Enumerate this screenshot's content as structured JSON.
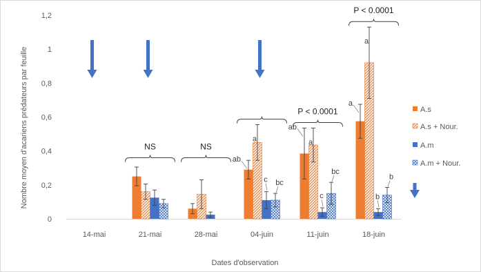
{
  "chart_data": {
    "type": "bar",
    "xlabel": "Dates d'observation",
    "ylabel": "Nombre moyen d'acariens prédateurs par feuille",
    "ylim": [
      0,
      1.2
    ],
    "yticks": [
      "0",
      "0,2",
      "0,4",
      "0,6",
      "0,8",
      "1",
      "1,2"
    ],
    "ytick_values": [
      0,
      0.2,
      0.4,
      0.6,
      0.8,
      1.0,
      1.2
    ],
    "grid": false,
    "legend_position": "right",
    "categories": [
      "14-mai",
      "21-mai",
      "28-mai",
      "04-juin",
      "11-juin",
      "18-juin"
    ],
    "series": [
      {
        "name": "A.s",
        "color": "#ED7D31",
        "pattern": "solid",
        "values": [
          null,
          0.25,
          0.06,
          0.29,
          0.385,
          0.575
        ],
        "errors": [
          null,
          0.055,
          0.03,
          0.055,
          0.15,
          0.1
        ],
        "letters": [
          "",
          "",
          "",
          "ab",
          "ab",
          "a"
        ]
      },
      {
        "name": "A.s + Nour.",
        "color": "#ED7D31",
        "pattern": "hatch",
        "values": [
          null,
          0.16,
          0.145,
          0.45,
          0.435,
          0.92
        ],
        "errors": [
          null,
          0.045,
          0.085,
          0.105,
          0.1,
          0.21
        ],
        "letters": [
          "",
          "",
          "",
          "a",
          "a",
          "a"
        ]
      },
      {
        "name": "A.m",
        "color": "#4472C4",
        "pattern": "solid",
        "values": [
          null,
          0.125,
          0.025,
          0.11,
          0.04,
          0.04
        ],
        "errors": [
          null,
          0.045,
          0.015,
          0.05,
          0.025,
          0.02
        ],
        "letters": [
          "",
          "",
          "",
          "c",
          "c",
          "b"
        ]
      },
      {
        "name": "A.m + Nour.",
        "color": "#4472C4",
        "pattern": "dots",
        "values": [
          null,
          0.09,
          null,
          0.11,
          0.15,
          0.14
        ],
        "errors": [
          null,
          0.025,
          null,
          0.04,
          0.065,
          0.045
        ],
        "letters": [
          "",
          "",
          "",
          "bc",
          "bc",
          "b"
        ]
      }
    ],
    "significance": [
      {
        "category": "21-mai",
        "label": "NS"
      },
      {
        "category": "28-mai",
        "label": "NS"
      },
      {
        "category": "04-juin",
        "label": ""
      },
      {
        "category": "11-juin",
        "label": "P < 0.0001"
      },
      {
        "category": "18-juin",
        "label": "P < 0.0001"
      }
    ],
    "arrows": {
      "color": "#4472C4",
      "direction": "down",
      "on_categories": [
        "14-mai",
        "21-mai",
        "04-juin"
      ],
      "in_legend": true
    }
  }
}
